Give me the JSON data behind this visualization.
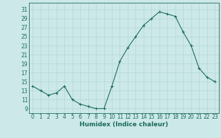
{
  "x": [
    0,
    1,
    2,
    3,
    4,
    5,
    6,
    7,
    8,
    9,
    10,
    11,
    12,
    13,
    14,
    15,
    16,
    17,
    18,
    19,
    20,
    21,
    22,
    23
  ],
  "y": [
    14,
    13,
    12,
    12.5,
    14,
    11,
    10,
    9.5,
    9,
    9,
    14,
    19.5,
    22.5,
    25,
    27.5,
    29,
    30.5,
    30,
    29.5,
    26,
    23,
    18,
    16,
    15
  ],
  "line_color": "#1a6b5a",
  "marker_color": "#1a6b5a",
  "bg_color": "#cce8e8",
  "grid_color": "#b0d8d8",
  "xlabel": "Humidex (Indice chaleur)",
  "ylabel_ticks": [
    9,
    11,
    13,
    15,
    17,
    19,
    21,
    23,
    25,
    27,
    29,
    31
  ],
  "ylim": [
    8.0,
    32.5
  ],
  "xlim": [
    -0.5,
    23.5
  ],
  "xticks": [
    0,
    1,
    2,
    3,
    4,
    5,
    6,
    7,
    8,
    9,
    10,
    11,
    12,
    13,
    14,
    15,
    16,
    17,
    18,
    19,
    20,
    21,
    22,
    23
  ],
  "font_color": "#1a6b5a",
  "tick_fontsize": 5.5,
  "xlabel_fontsize": 6.5
}
